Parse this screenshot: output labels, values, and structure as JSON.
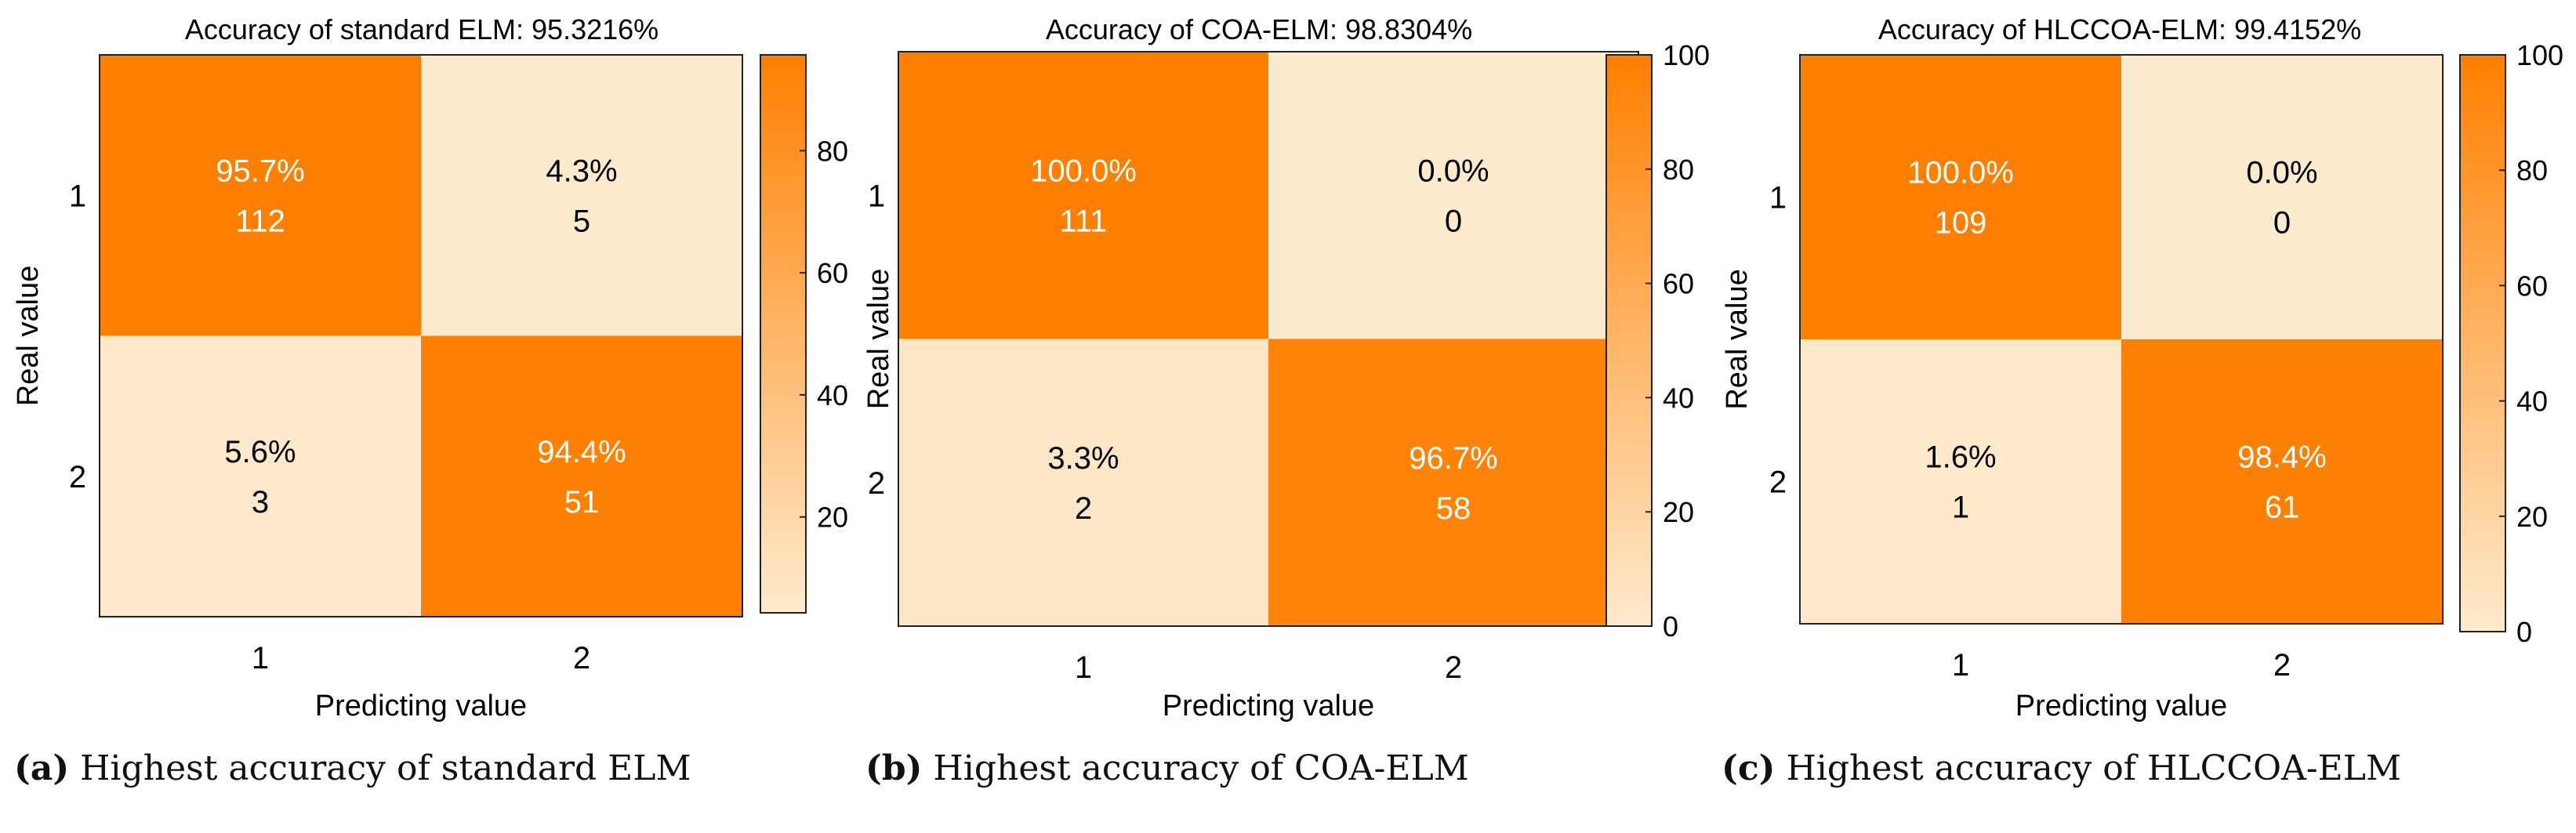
{
  "colors": {
    "high": "#ff7f00",
    "low": "#feebcd",
    "border": "#222222",
    "text_dark": "#000000",
    "text_light": "#ffffff"
  },
  "chart_data": [
    {
      "type": "heatmap",
      "title": "Accuracy of standard ELM: 95.3216%",
      "xlabel": "Predicting value",
      "ylabel": "Real value",
      "x_categories": [
        "1",
        "2"
      ],
      "y_categories": [
        "1",
        "2"
      ],
      "cells": [
        [
          {
            "percent": "95.7%",
            "pct_value": 95.7,
            "count": "112"
          },
          {
            "percent": "4.3%",
            "pct_value": 4.3,
            "count": "5"
          }
        ],
        [
          {
            "percent": "5.6%",
            "pct_value": 5.6,
            "count": "3"
          },
          {
            "percent": "94.4%",
            "pct_value": 94.4,
            "count": "51"
          }
        ]
      ],
      "colorbar": {
        "range": [
          4.3,
          95.7
        ],
        "ticks": [
          "20",
          "40",
          "60",
          "80"
        ],
        "tick_values": [
          20,
          40,
          60,
          80
        ]
      },
      "caption": {
        "label": "(a)",
        "text": "Highest accuracy of standard ELM"
      }
    },
    {
      "type": "heatmap",
      "title": "Accuracy of COA-ELM: 98.8304%",
      "xlabel": "Predicting value",
      "ylabel": "Real value",
      "x_categories": [
        "1",
        "2"
      ],
      "y_categories": [
        "1",
        "2"
      ],
      "cells": [
        [
          {
            "percent": "100.0%",
            "pct_value": 100.0,
            "count": "111"
          },
          {
            "percent": "0.0%",
            "pct_value": 0.0,
            "count": "0"
          }
        ],
        [
          {
            "percent": "3.3%",
            "pct_value": 3.3,
            "count": "2"
          },
          {
            "percent": "96.7%",
            "pct_value": 96.7,
            "count": "58"
          }
        ]
      ],
      "colorbar": {
        "range": [
          0,
          100
        ],
        "ticks": [
          "0",
          "20",
          "40",
          "60",
          "80",
          "100"
        ],
        "tick_values": [
          0,
          20,
          40,
          60,
          80,
          100
        ]
      },
      "caption": {
        "label": "(b)",
        "text": "Highest accuracy of COA-ELM"
      }
    },
    {
      "type": "heatmap",
      "title": "Accuracy of HLCCOA-ELM: 99.4152%",
      "xlabel": "Predicting value",
      "ylabel": "Real value",
      "x_categories": [
        "1",
        "2"
      ],
      "y_categories": [
        "1",
        "2"
      ],
      "cells": [
        [
          {
            "percent": "100.0%",
            "pct_value": 100.0,
            "count": "109"
          },
          {
            "percent": "0.0%",
            "pct_value": 0.0,
            "count": "0"
          }
        ],
        [
          {
            "percent": "1.6%",
            "pct_value": 1.6,
            "count": "1"
          },
          {
            "percent": "98.4%",
            "pct_value": 98.4,
            "count": "61"
          }
        ]
      ],
      "colorbar": {
        "range": [
          0,
          100
        ],
        "ticks": [
          "0",
          "20",
          "40",
          "60",
          "80",
          "100"
        ],
        "tick_values": [
          0,
          20,
          40,
          60,
          80,
          100
        ]
      },
      "caption": {
        "label": "(c)",
        "text": "Highest accuracy of HLCCOA-ELM"
      }
    }
  ]
}
